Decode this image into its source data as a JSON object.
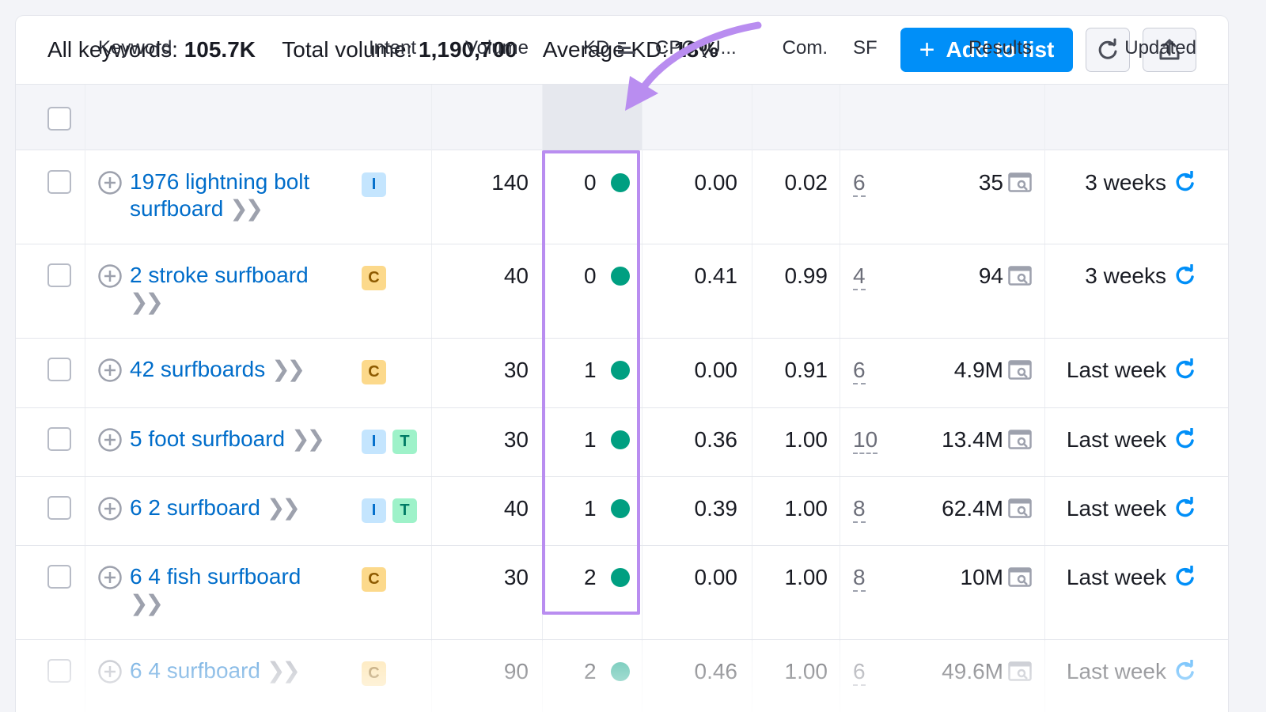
{
  "summary": {
    "all_keywords_label": "All keywords:",
    "all_keywords_value": "105.7K",
    "total_volume_label": "Total volume:",
    "total_volume_value": "1,190,700",
    "avg_kd_label": "Average KD:",
    "avg_kd_value": "18%"
  },
  "toolbar": {
    "add_to_list_label": "Add to list",
    "refresh_icon": "refresh-icon",
    "export_icon": "export-icon"
  },
  "columns": {
    "keyword": "Keyword",
    "intent": "Intent",
    "volume": "Volume",
    "kd": "KD",
    "cpc": "CPC (U...",
    "com": "Com.",
    "sf": "SF",
    "results": "Results",
    "updated": "Updated"
  },
  "colors": {
    "accent": "#008ff8",
    "link": "#006dca",
    "kd_easy": "#009f81",
    "highlight": "#b98df0"
  },
  "rows": [
    {
      "keyword": [
        "1976 lightning bolt",
        "surfboard"
      ],
      "intent": [
        "I"
      ],
      "volume": "140",
      "kd": "0",
      "cpc": "0.00",
      "com": "0.02",
      "sf": "6",
      "results": "35",
      "updated": "3 weeks"
    },
    {
      "keyword": [
        "2 stroke surfboard",
        ""
      ],
      "intent": [
        "C"
      ],
      "volume": "40",
      "kd": "0",
      "cpc": "0.41",
      "com": "0.99",
      "sf": "4",
      "results": "94",
      "updated": "3 weeks"
    },
    {
      "keyword": [
        "42 surfboards"
      ],
      "intent": [
        "C"
      ],
      "volume": "30",
      "kd": "1",
      "cpc": "0.00",
      "com": "0.91",
      "sf": "6",
      "results": "4.9M",
      "updated": "Last week"
    },
    {
      "keyword": [
        "5 foot surfboard"
      ],
      "intent": [
        "I",
        "T"
      ],
      "volume": "30",
      "kd": "1",
      "cpc": "0.36",
      "com": "1.00",
      "sf": "10",
      "results": "13.4M",
      "updated": "Last week"
    },
    {
      "keyword": [
        "6 2 surfboard"
      ],
      "intent": [
        "I",
        "T"
      ],
      "volume": "40",
      "kd": "1",
      "cpc": "0.39",
      "com": "1.00",
      "sf": "8",
      "results": "62.4M",
      "updated": "Last week"
    },
    {
      "keyword": [
        "6 4 fish surfboard",
        ""
      ],
      "intent": [
        "C"
      ],
      "volume": "30",
      "kd": "2",
      "cpc": "0.00",
      "com": "1.00",
      "sf": "8",
      "results": "10M",
      "updated": "Last week"
    },
    {
      "keyword": [
        "6 4 surfboard"
      ],
      "intent": [
        "C"
      ],
      "volume": "90",
      "kd": "2",
      "cpc": "0.46",
      "com": "1.00",
      "sf": "6",
      "results": "49.6M",
      "updated": "Last week"
    }
  ]
}
